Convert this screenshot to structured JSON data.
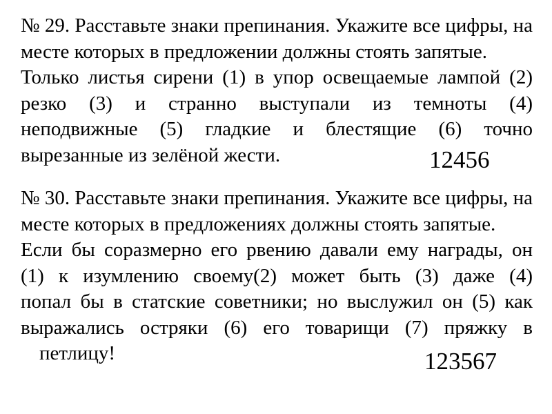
{
  "colors": {
    "background": "#ffffff",
    "text": "#000000"
  },
  "q29": {
    "number": "29",
    "instruction_lines": [
      "№ 29. Расставьте знаки препинания. Укажите все цифры, на",
      "месте которых в предложении должны стоять запятые."
    ],
    "sentence_lines": [
      "Только листья сирени (1) в упор освещаемые лампой (2)",
      "резко (3) и странно выступали из темноты (4)",
      "неподвижные (5) гладкие и блестящие (6) точно",
      "вырезанные из зелёной жести."
    ],
    "answer": "12456"
  },
  "q30": {
    "number": "30",
    "instruction_lines": [
      "№ 30. Расставьте знаки препинания. Укажите все цифры, на",
      "месте которых в предложениях должны стоять запятые."
    ],
    "sentence_lines": [
      "Если бы соразмерно его рвению давали ему награды, он",
      "(1) к изумлению своему(2) может быть (3) даже (4)",
      "попал бы в статские советники; но выслужил он (5) как",
      "выражались остряки (6) его товарищи (7) пряжку в",
      "петлицу!"
    ],
    "answer": "123567"
  }
}
